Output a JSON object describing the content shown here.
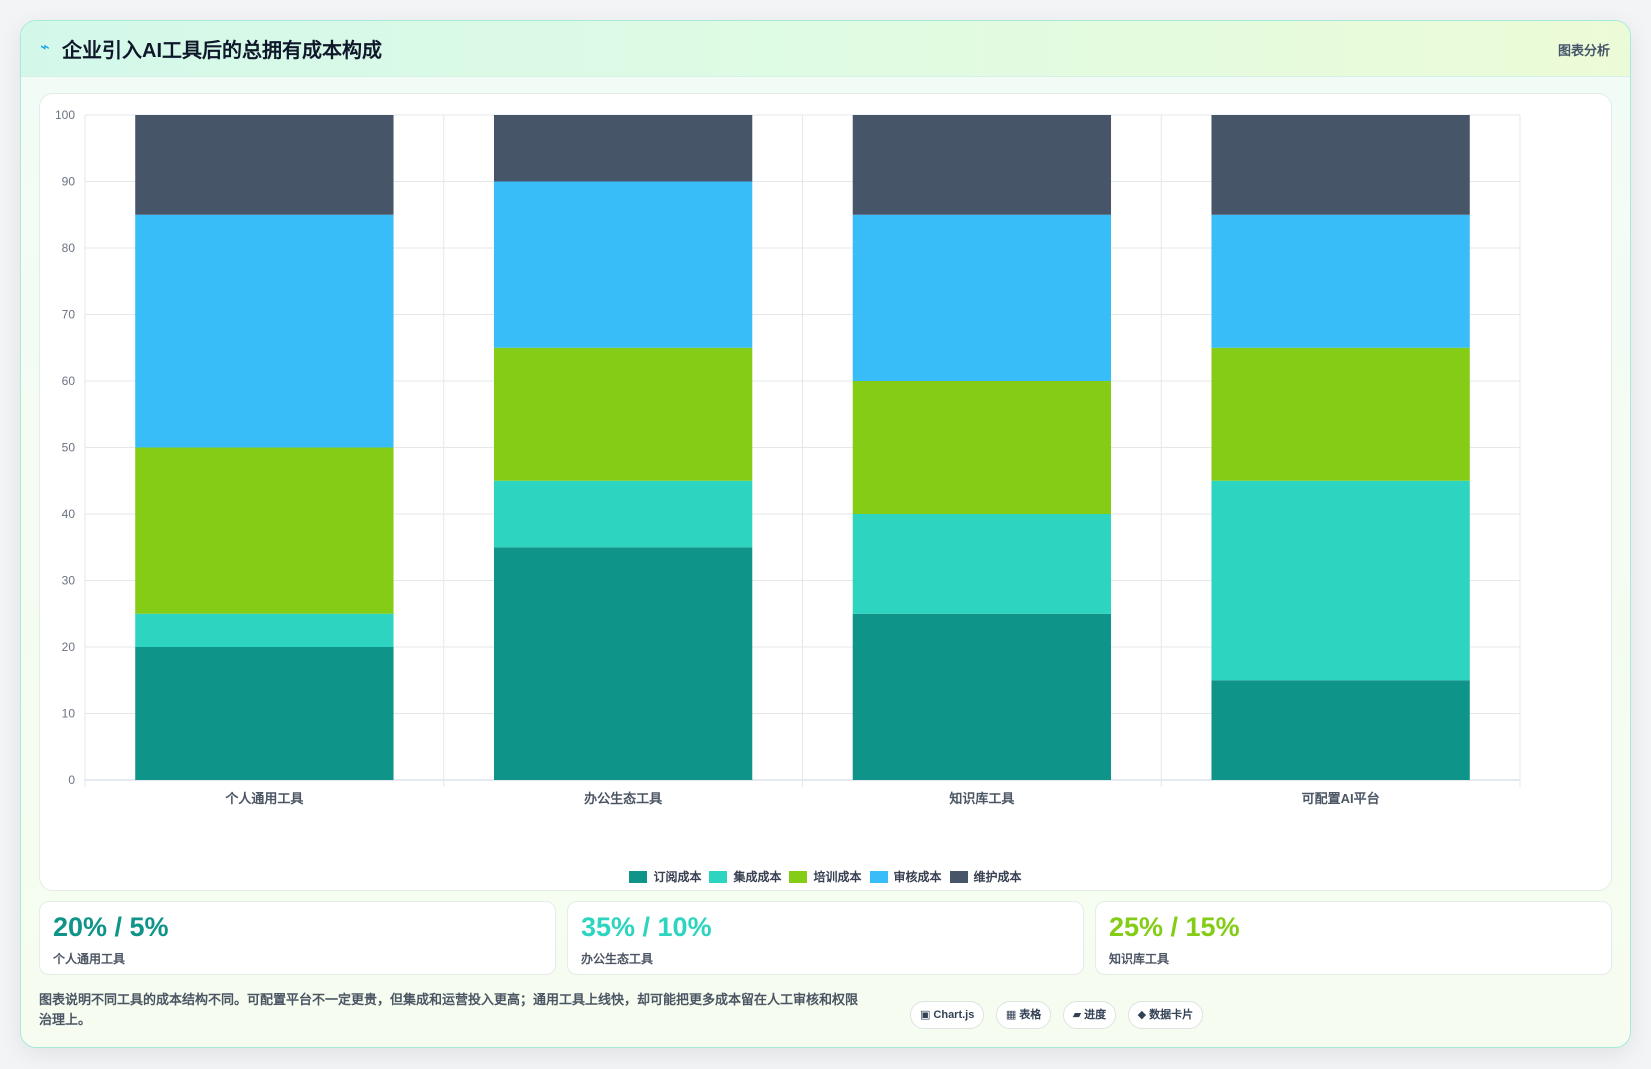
{
  "header": {
    "icon": "⌁",
    "title": "企业引入AI工具后的总拥有成本构成",
    "tag": "图表分析"
  },
  "chart_data": {
    "type": "bar",
    "stacked": true,
    "categories": [
      "个人通用工具",
      "办公生态工具",
      "知识库工具",
      "可配置AI平台"
    ],
    "series": [
      {
        "name": "订阅成本",
        "color": "#0e9488",
        "values": [
          20,
          35,
          25,
          15
        ]
      },
      {
        "name": "集成成本",
        "color": "#2dd4bf",
        "values": [
          5,
          10,
          15,
          30
        ]
      },
      {
        "name": "培训成本",
        "color": "#84cc16",
        "values": [
          25,
          20,
          20,
          20
        ]
      },
      {
        "name": "审核成本",
        "color": "#38bdf8",
        "values": [
          35,
          25,
          25,
          20
        ]
      },
      {
        "name": "维护成本",
        "color": "#475569",
        "values": [
          15,
          10,
          15,
          15
        ]
      }
    ],
    "yticks": [
      0,
      10,
      20,
      30,
      40,
      50,
      60,
      70,
      80,
      90,
      100
    ],
    "ylim": [
      0,
      100
    ],
    "grid": true,
    "legend_position": "bottom"
  },
  "stats": [
    {
      "value": "20% / 5%",
      "label": "个人通用工具",
      "color": "#0e9488"
    },
    {
      "value": "35% / 10%",
      "label": "办公生态工具",
      "color": "#2dd4bf"
    },
    {
      "value": "25% / 15%",
      "label": "知识库工具",
      "color": "#84cc16"
    }
  ],
  "footer": {
    "note": "图表说明不同工具的成本结构不同。可配置平台不一定更贵，但集成和运营投入更高；通用工具上线快，却可能把更多成本留在人工审核和权限治理上。",
    "chips": [
      {
        "icon": "▣",
        "label": "Chart.js",
        "icon_name": "chart-icon"
      },
      {
        "icon": "▦",
        "label": "表格",
        "icon_name": "table-icon"
      },
      {
        "icon": "▰",
        "label": "进度",
        "icon_name": "progress-icon"
      },
      {
        "icon": "◆",
        "label": "数据卡片",
        "icon_name": "data-card-icon"
      }
    ]
  }
}
